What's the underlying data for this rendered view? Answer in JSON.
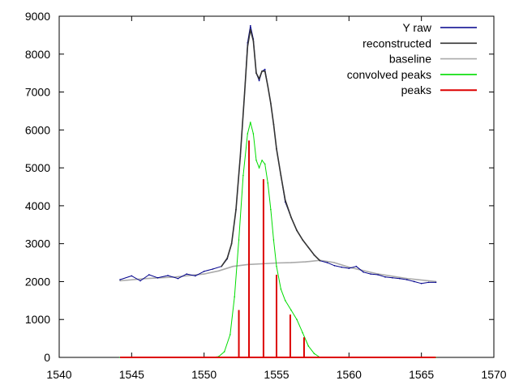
{
  "chart_data": {
    "type": "line",
    "title": "",
    "xlabel": "",
    "ylabel": "",
    "xlim": [
      1540,
      1570
    ],
    "ylim": [
      0,
      9000
    ],
    "x_ticks": [
      1540,
      1545,
      1550,
      1555,
      1560,
      1565,
      1570
    ],
    "y_ticks": [
      0,
      1000,
      2000,
      3000,
      4000,
      5000,
      6000,
      7000,
      8000,
      9000
    ],
    "grid": false,
    "legend_position": "top-right",
    "series": [
      {
        "name": "Y raw",
        "color": "#00008b",
        "style": "line",
        "x": [
          1544.2,
          1545.0,
          1545.6,
          1546.2,
          1546.8,
          1547.5,
          1548.2,
          1548.8,
          1549.4,
          1550.0,
          1550.6,
          1551.2,
          1551.6,
          1551.9,
          1552.2,
          1552.5,
          1552.8,
          1553.0,
          1553.2,
          1553.4,
          1553.6,
          1553.8,
          1554.0,
          1554.2,
          1554.4,
          1554.6,
          1554.8,
          1555.0,
          1555.3,
          1555.6,
          1556.0,
          1556.4,
          1556.8,
          1557.2,
          1557.6,
          1558.0,
          1558.5,
          1559.0,
          1559.5,
          1560.0,
          1560.5,
          1561.0,
          1561.5,
          1562.0,
          1562.5,
          1563.0,
          1563.5,
          1564.0,
          1564.5,
          1565.0,
          1565.5,
          1566.0
        ],
        "y": [
          2050,
          2150,
          2020,
          2180,
          2100,
          2160,
          2080,
          2200,
          2150,
          2270,
          2330,
          2400,
          2600,
          3000,
          3900,
          5300,
          7000,
          8300,
          8750,
          8400,
          7500,
          7300,
          7550,
          7600,
          7150,
          6700,
          6150,
          5500,
          4800,
          4100,
          3700,
          3350,
          3100,
          2900,
          2700,
          2550,
          2500,
          2420,
          2380,
          2350,
          2400,
          2250,
          2200,
          2180,
          2120,
          2100,
          2080,
          2050,
          2000,
          1950,
          1980,
          1980
        ]
      },
      {
        "name": "reconstructed",
        "color": "#333333",
        "style": "line",
        "x": [
          1551.2,
          1551.6,
          1551.9,
          1552.2,
          1552.5,
          1552.8,
          1553.0,
          1553.2,
          1553.4,
          1553.6,
          1553.8,
          1554.0,
          1554.2,
          1554.4,
          1554.6,
          1554.8,
          1555.0,
          1555.3,
          1555.6,
          1556.0,
          1556.4,
          1556.8,
          1557.2,
          1557.6,
          1558.0
        ],
        "y": [
          2400,
          2620,
          3000,
          3900,
          5300,
          7000,
          8200,
          8650,
          8350,
          7500,
          7350,
          7550,
          7550,
          7150,
          6700,
          6150,
          5500,
          4800,
          4150,
          3700,
          3350,
          3100,
          2900,
          2700,
          2550
        ]
      },
      {
        "name": "baseline",
        "color": "#aaaaaa",
        "style": "line",
        "x": [
          1544.2,
          1546.0,
          1548.0,
          1550.0,
          1551.0,
          1552.0,
          1553.0,
          1554.0,
          1555.0,
          1556.0,
          1557.0,
          1558.0,
          1559.0,
          1560.0,
          1562.0,
          1564.0,
          1566.0
        ],
        "y": [
          2020,
          2080,
          2120,
          2200,
          2280,
          2400,
          2450,
          2470,
          2490,
          2500,
          2520,
          2560,
          2500,
          2380,
          2200,
          2080,
          2000
        ]
      },
      {
        "name": "convolved peaks",
        "color": "#00dd00",
        "style": "line",
        "x": [
          1544.2,
          1550.5,
          1551.0,
          1551.4,
          1551.8,
          1552.1,
          1552.4,
          1552.7,
          1553.0,
          1553.2,
          1553.4,
          1553.6,
          1553.8,
          1554.0,
          1554.2,
          1554.4,
          1554.6,
          1554.8,
          1555.0,
          1555.3,
          1555.6,
          1556.0,
          1556.4,
          1556.8,
          1557.2,
          1557.6,
          1558.0,
          1566.0
        ],
        "y": [
          0,
          0,
          20,
          150,
          600,
          1600,
          3100,
          4800,
          5900,
          6200,
          5900,
          5200,
          5000,
          5200,
          5100,
          4600,
          3900,
          3100,
          2400,
          1800,
          1500,
          1250,
          1000,
          650,
          300,
          100,
          0,
          0
        ]
      },
      {
        "name": "peaks",
        "color": "#dd0000",
        "style": "impulse",
        "x": [
          1552.4,
          1553.1,
          1554.1,
          1555.0,
          1555.95,
          1556.9
        ],
        "y": [
          1250,
          5720,
          4700,
          2180,
          1130,
          530
        ]
      }
    ]
  }
}
